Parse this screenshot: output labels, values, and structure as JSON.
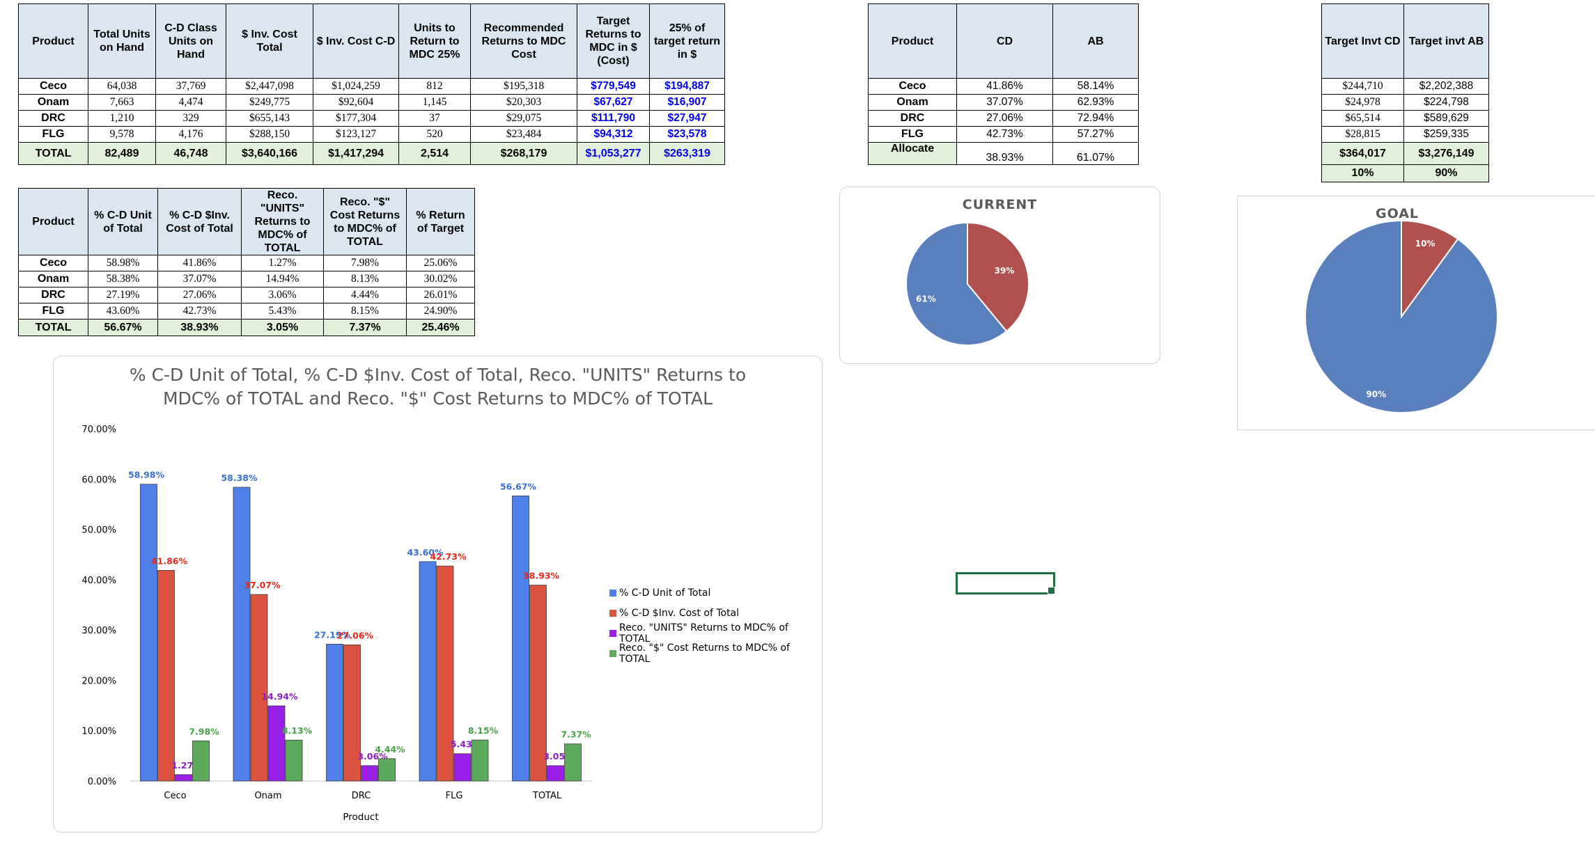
{
  "table1": {
    "headers": [
      "Product",
      "Total Units on Hand",
      "C-D Class Units on Hand",
      "$ Inv. Cost Total",
      "$ Inv. Cost C-D",
      "Units to Return to MDC 25%",
      "Recommended Returns to MDC Cost",
      "Target Returns to MDC in $ (Cost)",
      "25% of target return in $"
    ],
    "rows": [
      [
        "Ceco",
        "64,038",
        "37,769",
        "$2,447,098",
        "$1,024,259",
        "812",
        "$195,318",
        "$779,549",
        "$194,887"
      ],
      [
        "Onam",
        "7,663",
        "4,474",
        "$249,775",
        "$92,604",
        "1,145",
        "$20,303",
        "$67,627",
        "$16,907"
      ],
      [
        "DRC",
        "1,210",
        "329",
        "$655,143",
        "$177,304",
        "37",
        "$29,075",
        "$111,790",
        "$27,947"
      ],
      [
        "FLG",
        "9,578",
        "4,176",
        "$288,150",
        "$123,127",
        "520",
        "$23,484",
        "$94,312",
        "$23,578"
      ]
    ],
    "total": [
      "TOTAL",
      "82,489",
      "46,748",
      "$3,640,166",
      "$1,417,294",
      "2,514",
      "$268,179",
      "$1,053,277",
      "$263,319"
    ]
  },
  "table2": {
    "headers": [
      "Product",
      "CD",
      "AB"
    ],
    "rows": [
      [
        "Ceco",
        "41.86%",
        "58.14%"
      ],
      [
        "Onam",
        "37.07%",
        "62.93%"
      ],
      [
        "DRC",
        "27.06%",
        "72.94%"
      ],
      [
        "FLG",
        "42.73%",
        "57.27%"
      ]
    ],
    "total": [
      "Allocate",
      "38.93%",
      "61.07%"
    ]
  },
  "table3": {
    "headers": [
      "Target Invt CD",
      "Target invt AB"
    ],
    "rows": [
      [
        "$244,710",
        "$2,202,388"
      ],
      [
        "$24,978",
        "$224,798"
      ],
      [
        "$65,514",
        "$589,629"
      ],
      [
        "$28,815",
        "$259,335"
      ]
    ],
    "total": [
      "$364,017",
      "$3,276,149"
    ],
    "pct": [
      "10%",
      "90%"
    ]
  },
  "table4": {
    "headers": [
      "Product",
      "% C-D Unit of Total",
      "% C-D $Inv. Cost of Total",
      "Reco. \"UNITS\" Returns to MDC% of TOTAL",
      "Reco. \"$\" Cost Returns to MDC% of TOTAL",
      "% Return of Target"
    ],
    "rows": [
      [
        "Ceco",
        "58.98%",
        "41.86%",
        "1.27%",
        "7.98%",
        "25.06%"
      ],
      [
        "Onam",
        "58.38%",
        "37.07%",
        "14.94%",
        "8.13%",
        "30.02%"
      ],
      [
        "DRC",
        "27.19%",
        "27.06%",
        "3.06%",
        "4.44%",
        "26.01%"
      ],
      [
        "FLG",
        "43.60%",
        "42.73%",
        "5.43%",
        "8.15%",
        "24.90%"
      ]
    ],
    "total": [
      "TOTAL",
      "56.67%",
      "38.93%",
      "3.05%",
      "7.37%",
      "25.46%"
    ]
  },
  "pie_current": {
    "title": "CURRENT",
    "slices": [
      {
        "label": "39%",
        "value": 39,
        "color": "#b0504e"
      },
      {
        "label": "61%",
        "value": 61,
        "color": "#5a7fbd"
      }
    ]
  },
  "pie_goal": {
    "title": "GOAL",
    "slices": [
      {
        "label": "10%",
        "value": 10,
        "color": "#b0504e"
      },
      {
        "label": "90%",
        "value": 90,
        "color": "#5a7fbd"
      }
    ]
  },
  "chart_data": {
    "type": "bar",
    "title_line1": "% C-D Unit of Total, % C-D $Inv. Cost of Total, Reco. \"UNITS\" Returns to",
    "title_line2": "MDC% of TOTAL and Reco. \"$\" Cost Returns to MDC% of TOTAL",
    "xlabel": "Product",
    "ylabel": "",
    "categories": [
      "Ceco",
      "Onam",
      "DRC",
      "FLG",
      "TOTAL"
    ],
    "ylim": [
      0,
      70
    ],
    "yticks": [
      "0.00%",
      "10.00%",
      "20.00%",
      "30.00%",
      "40.00%",
      "50.00%",
      "60.00%",
      "70.00%"
    ],
    "grid": false,
    "legend_position": "right",
    "series": [
      {
        "name": "% C-D Unit of Total",
        "color": "#4f7fe8",
        "label_color": "#3a6fd8",
        "values": [
          58.98,
          58.38,
          27.19,
          43.6,
          56.67
        ],
        "labels": [
          "58.98%",
          "58.38%",
          "27.19%",
          "43.60%",
          "56.67%"
        ]
      },
      {
        "name": "% C-D $Inv. Cost of Total",
        "color": "#dc5340",
        "label_color": "#e8261a",
        "values": [
          41.86,
          37.07,
          27.06,
          42.73,
          38.93
        ],
        "labels": [
          "41.86%",
          "37.07%",
          "27.06%",
          "42.73%",
          "38.93%"
        ]
      },
      {
        "name": "Reco. \"UNITS\" Returns to MDC% of TOTAL",
        "color": "#9a1fe8",
        "label_color": "#8a1fc8",
        "values": [
          1.27,
          14.94,
          3.06,
          5.43,
          3.05
        ],
        "labels": [
          "1.27%",
          "14.94%",
          "3.06%",
          "5.43%",
          "3.05%"
        ]
      },
      {
        "name": "Reco. \"$\" Cost Returns to MDC% of TOTAL",
        "color": "#5daa5d",
        "label_color": "#4aa04a",
        "values": [
          7.98,
          8.13,
          4.44,
          8.15,
          7.37
        ],
        "labels": [
          "7.98%",
          "8.13%",
          "4.44%",
          "8.15%",
          "7.37%"
        ]
      }
    ]
  }
}
